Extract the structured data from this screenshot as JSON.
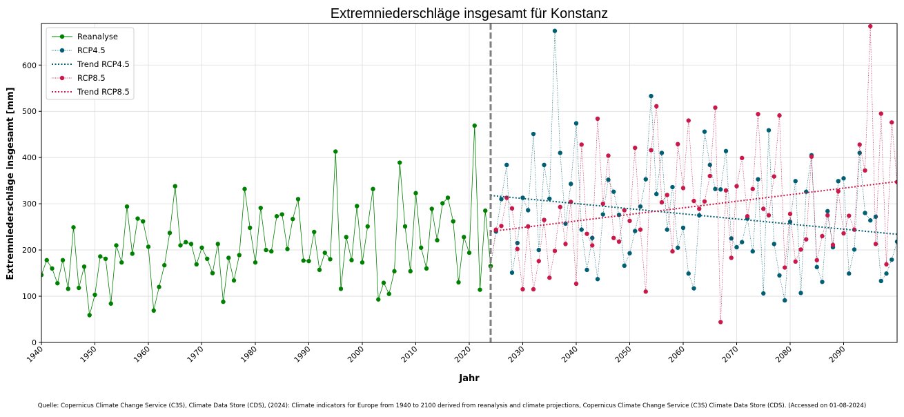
{
  "source_note": "Quelle: Copernicus Climate Change Service (C3S), Climate Data Store (CDS), (2024): Climate indicators for Europe from 1940 to 2100 derived from reanalysis and climate projections, Copernicus Climate Change Service (C3S) Climate Data Store (CDS). (Accessed on 01-08-2024)",
  "chart_data": {
    "type": "line",
    "title": "Extremniederschläge insgesamt für Konstanz",
    "xlabel": "Jahr",
    "ylabel": "Extremniederschläge insgesamt [mm]",
    "xlim": [
      1940,
      2100
    ],
    "ylim": [
      0,
      690
    ],
    "x_ticks": [
      1940,
      1950,
      1960,
      1970,
      1980,
      1990,
      2000,
      2010,
      2020,
      2030,
      2040,
      2050,
      2060,
      2070,
      2080,
      2090
    ],
    "y_ticks": [
      0,
      100,
      200,
      300,
      400,
      500,
      600
    ],
    "grid": true,
    "legend_position": "top-left",
    "vertical_marker_year": 2024,
    "colors": {
      "reanalyse": "#008000",
      "rcp45": "#005f73",
      "rcp85": "#c9184a",
      "marker_line": "#7f7f7f"
    },
    "series": [
      {
        "name": "Reanalyse",
        "start_year": 1940,
        "values": [
          146,
          178,
          160,
          128,
          178,
          116,
          249,
          118,
          164,
          59,
          103,
          186,
          181,
          84,
          210,
          173,
          294,
          192,
          268,
          262,
          207,
          69,
          120,
          167,
          237,
          338,
          210,
          217,
          213,
          169,
          205,
          181,
          150,
          213,
          88,
          183,
          134,
          189,
          332,
          248,
          173,
          291,
          200,
          197,
          273,
          277,
          202,
          267,
          310,
          177,
          176,
          239,
          157,
          194,
          180,
          413,
          116,
          228,
          178,
          295,
          173,
          251,
          332,
          93,
          129,
          105,
          154,
          389,
          251,
          154,
          323,
          205,
          160,
          289,
          221,
          301,
          313,
          262,
          130,
          228,
          194,
          469,
          114,
          285,
          165
        ]
      },
      {
        "name": "RCP4.5",
        "start_year": 2024,
        "values": [
          165,
          240,
          310,
          384,
          151,
          215,
          313,
          286,
          451,
          200,
          384,
          311,
          674,
          410,
          257,
          343,
          474,
          244,
          157,
          226,
          137,
          277,
          352,
          326,
          276,
          166,
          193,
          241,
          294,
          353,
          533,
          321,
          410,
          244,
          336,
          205,
          248,
          149,
          117,
          275,
          456,
          384,
          332,
          331,
          414,
          225,
          206,
          217,
          268,
          197,
          353,
          106,
          459,
          213,
          145,
          91,
          261,
          349,
          107,
          326,
          405,
          163,
          131,
          284,
          206,
          349,
          355,
          149,
          201,
          410,
          280,
          264,
          272,
          133,
          149,
          179,
          218
        ]
      },
      {
        "name": "RCP8.5",
        "start_year": 2024,
        "values": [
          165,
          244,
          252,
          313,
          290,
          202,
          115,
          251,
          115,
          176,
          265,
          140,
          198,
          293,
          213,
          304,
          127,
          428,
          235,
          210,
          484,
          300,
          404,
          226,
          218,
          286,
          263,
          421,
          244,
          110,
          416,
          511,
          303,
          319,
          197,
          429,
          334,
          480,
          306,
          289,
          305,
          360,
          508,
          44,
          329,
          183,
          338,
          399,
          273,
          332,
          494,
          289,
          275,
          359,
          491,
          162,
          278,
          175,
          201,
          223,
          402,
          178,
          230,
          275,
          211,
          327,
          236,
          274,
          244,
          428,
          372,
          684,
          213,
          495,
          169,
          476,
          347
        ]
      },
      {
        "name": "Trend RCP4.5",
        "trend": true,
        "x": [
          2024,
          2100
        ],
        "values": [
          318,
          234
        ]
      },
      {
        "name": "Trend RCP8.5",
        "trend": true,
        "x": [
          2024,
          2100
        ],
        "values": [
          240,
          348
        ]
      }
    ]
  }
}
